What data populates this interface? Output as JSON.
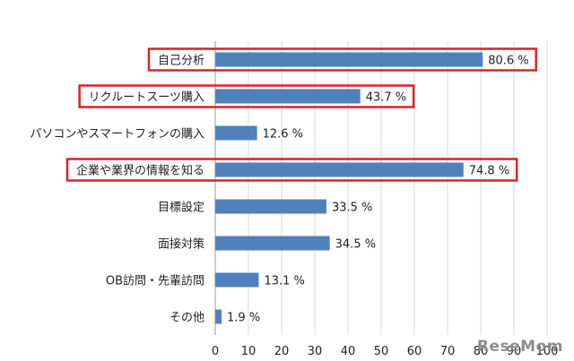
{
  "chart_data": {
    "type": "bar",
    "orientation": "horizontal",
    "categories": [
      "自己分析",
      "リクルートスーツ購入",
      "パソコンやスマートフォンの購入",
      "企業や業界の情報を知る",
      "目標設定",
      "面接対策",
      "OB訪問・先輩訪問",
      "その他"
    ],
    "values": [
      80.6,
      43.7,
      12.6,
      74.8,
      33.5,
      34.5,
      13.1,
      1.9
    ],
    "value_labels": [
      "80.6 %",
      "43.7 %",
      "12.6 %",
      "74.8 %",
      "33.5 %",
      "34.5 %",
      "13.1 %",
      "1.9 %"
    ],
    "highlighted": [
      true,
      true,
      false,
      true,
      false,
      false,
      false,
      false
    ],
    "xlim": [
      0,
      100
    ],
    "xticks": [
      0,
      10,
      20,
      30,
      40,
      50,
      60,
      70,
      80,
      90,
      100
    ],
    "grid": true,
    "colors": {
      "bar": "#4f81bd",
      "highlight_box": "#d9232a",
      "grid": "#d9d9d9"
    }
  },
  "watermark": "ReseMom"
}
